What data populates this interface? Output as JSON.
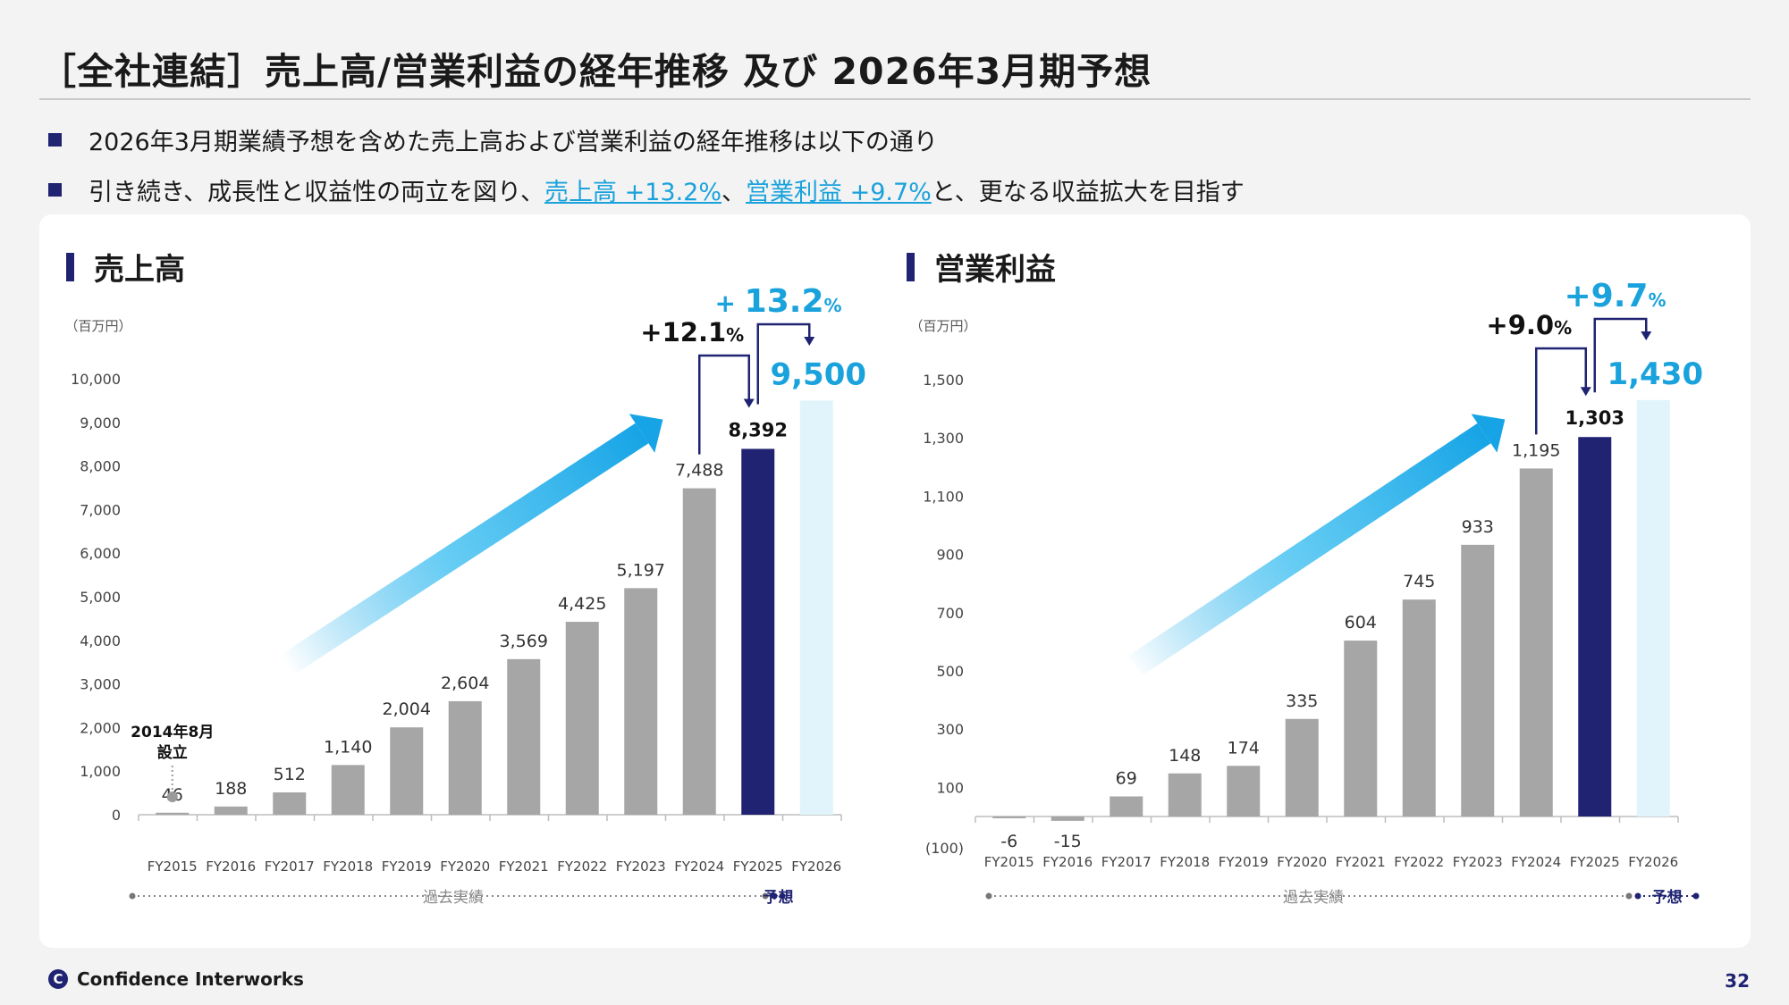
{
  "page": {
    "title": "［全社連結］売上高/営業利益の経年推移 及び 2026年3月期予想",
    "page_number": "32",
    "company_logo_text": "Confidence Interworks",
    "logo_glyph": "C"
  },
  "bullets": [
    {
      "segments": [
        {
          "text": "2026年3月期業績予想を含めた売上高および営業利益の経年推移は以下の通り",
          "highlight": false
        }
      ]
    },
    {
      "segments": [
        {
          "text": "引き続き、成長性と収益性の両立を図り、",
          "highlight": false
        },
        {
          "text": "売上高 +13.2%",
          "highlight": true
        },
        {
          "text": "、",
          "highlight": false
        },
        {
          "text": "営業利益 +9.7%",
          "highlight": true
        },
        {
          "text": "と、更なる収益拡大を目指す",
          "highlight": false
        }
      ]
    }
  ],
  "colors": {
    "actual_bar": "#a6a6a6",
    "current_bar": "#1f2372",
    "forecast_bar": "#e1f4fb",
    "accent_blue": "#1aa2dc",
    "navy": "#1f2372"
  },
  "chart_data": [
    {
      "type": "bar",
      "title": "売上高",
      "unit_label": "（百万円）",
      "categories": [
        "FY2015",
        "FY2016",
        "FY2017",
        "FY2018",
        "FY2019",
        "FY2020",
        "FY2021",
        "FY2022",
        "FY2023",
        "FY2024",
        "FY2025",
        "FY2026"
      ],
      "values": [
        46,
        188,
        512,
        1140,
        2004,
        2604,
        3569,
        4425,
        5197,
        7488,
        8392,
        9500
      ],
      "value_labels": [
        "46",
        "188",
        "512",
        "1,140",
        "2,004",
        "2,604",
        "3,569",
        "4,425",
        "5,197",
        "7,488",
        "8,392",
        "9,500"
      ],
      "bar_kinds": [
        "actual",
        "actual",
        "actual",
        "actual",
        "actual",
        "actual",
        "actual",
        "actual",
        "actual",
        "actual",
        "current",
        "forecast"
      ],
      "ylim": [
        0,
        10000
      ],
      "yticks": [
        0,
        1000,
        2000,
        3000,
        4000,
        5000,
        6000,
        7000,
        8000,
        9000,
        10000
      ],
      "ytick_labels": [
        "0",
        "1,000",
        "2,000",
        "3,000",
        "4,000",
        "5,000",
        "6,000",
        "7,000",
        "8,000",
        "9,000",
        "10,000"
      ],
      "growth_prev": {
        "number": "+12.1",
        "pct": "%"
      },
      "growth_forecast": {
        "number": "13.2",
        "plus": "+",
        "pct": "%"
      },
      "founding_note": [
        "2014年8月",
        "設立"
      ],
      "timeline_actual_label": "過去実績",
      "timeline_forecast_label": "予想"
    },
    {
      "type": "bar",
      "title": "営業利益",
      "unit_label": "（百万円）",
      "categories": [
        "FY2015",
        "FY2016",
        "FY2017",
        "FY2018",
        "FY2019",
        "FY2020",
        "FY2021",
        "FY2022",
        "FY2023",
        "FY2024",
        "FY2025",
        "FY2026"
      ],
      "values": [
        -6,
        -15,
        69,
        148,
        174,
        335,
        604,
        745,
        933,
        1195,
        1303,
        1430
      ],
      "value_labels": [
        "-6",
        "-15",
        "69",
        "148",
        "174",
        "335",
        "604",
        "745",
        "933",
        "1,195",
        "1,303",
        "1,430"
      ],
      "bar_kinds": [
        "actual",
        "actual",
        "actual",
        "actual",
        "actual",
        "actual",
        "actual",
        "actual",
        "actual",
        "actual",
        "current",
        "forecast"
      ],
      "ylim": [
        -100,
        1500
      ],
      "yticks": [
        -100,
        100,
        300,
        500,
        700,
        900,
        1100,
        1300,
        1500
      ],
      "ytick_labels": [
        "(100)",
        "100",
        "300",
        "500",
        "700",
        "900",
        "1,100",
        "1,300",
        "1,500"
      ],
      "growth_prev": {
        "number": "+9.0",
        "pct": "%"
      },
      "growth_forecast": {
        "number": "+9.7",
        "pct": "%"
      },
      "timeline_actual_label": "過去実績",
      "timeline_forecast_label": "予想"
    }
  ]
}
